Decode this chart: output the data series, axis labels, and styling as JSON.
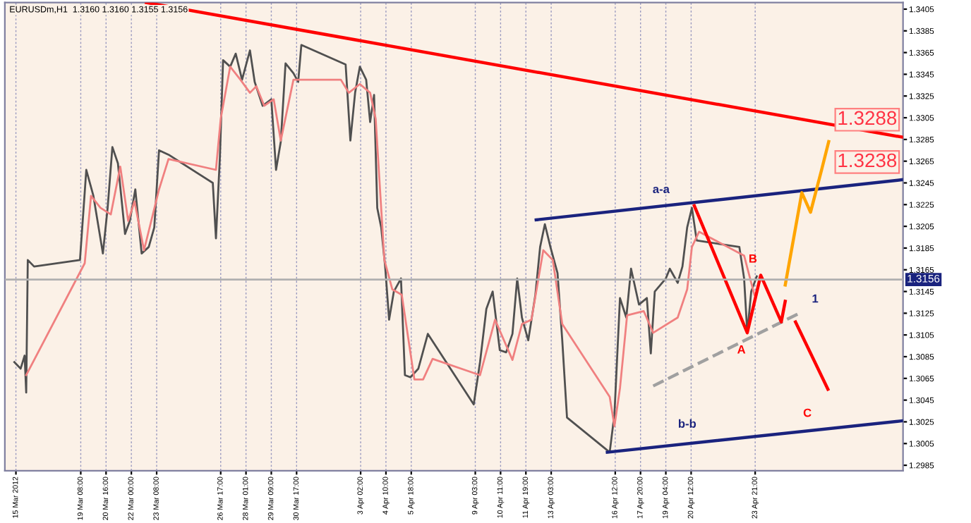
{
  "chart_data": {
    "type": "line",
    "title": "EURUSDm,H1  1.3160 1.3160 1.3155 1.3156",
    "xlim": [
      "2012-03-15T08:00",
      "2012-05-01T16:00"
    ],
    "ylim": [
      1.298,
      1.3411
    ],
    "xticks": [
      {
        "value": "2012-03-15T22:00",
        "label": "15 Mar 2012"
      },
      {
        "value": "2012-03-19T08:00",
        "label": "19 Mar 08:00"
      },
      {
        "value": "2012-03-20T16:00",
        "label": "20 Mar 16:00"
      },
      {
        "value": "2012-03-22T00:00",
        "label": "22 Mar 00:00"
      },
      {
        "value": "2012-03-23T08:00",
        "label": "23 Mar 08:00"
      },
      {
        "value": "2012-03-26T17:00",
        "label": "26 Mar 17:00"
      },
      {
        "value": "2012-03-28T01:00",
        "label": "28 Mar 01:00"
      },
      {
        "value": "2012-03-29T09:00",
        "label": "29 Mar 09:00"
      },
      {
        "value": "2012-03-30T17:00",
        "label": "30 Mar 17:00"
      },
      {
        "value": "2012-04-03T02:00",
        "label": "3 Apr 02:00"
      },
      {
        "value": "2012-04-04T10:00",
        "label": "4 Apr 10:00"
      },
      {
        "value": "2012-04-05T18:00",
        "label": "5 Apr 18:00"
      },
      {
        "value": "2012-04-09T03:00",
        "label": "9 Apr 03:00"
      },
      {
        "value": "2012-04-10T11:00",
        "label": "10 Apr 11:00"
      },
      {
        "value": "2012-04-11T19:00",
        "label": "11 Apr 19:00"
      },
      {
        "value": "2012-04-13T03:00",
        "label": "13 Apr 03:00"
      },
      {
        "value": "2012-04-16T12:00",
        "label": "16 Apr 12:00"
      },
      {
        "value": "2012-04-17T20:00",
        "label": "17 Apr 20:00"
      },
      {
        "value": "2012-04-19T04:00",
        "label": "19 Apr 04:00"
      },
      {
        "value": "2012-04-20T12:00",
        "label": "20 Apr 12:00"
      },
      {
        "value": "2012-04-23T21:00",
        "label": "23 Apr 21:00"
      }
    ],
    "yticks": [
      1.2985,
      1.3005,
      1.3025,
      1.3045,
      1.3065,
      1.3085,
      1.3105,
      1.3125,
      1.3145,
      1.3165,
      1.3185,
      1.3205,
      1.3225,
      1.3245,
      1.3265,
      1.3285,
      1.3305,
      1.3325,
      1.3345,
      1.3365,
      1.3385,
      1.3405
    ],
    "grid": "x",
    "marker": "none",
    "ref_lines": [
      {
        "axis": "y",
        "value": 1.3156,
        "label": "1.3156",
        "color": "#b0b0b0"
      }
    ],
    "series": [
      {
        "color": "#505050",
        "line_style": "solid",
        "x": [
          "2012-03-15T20:00",
          "2012-03-16T04:00",
          "2012-03-16T09:00",
          "2012-03-16T11:00",
          "2012-03-16T13:00",
          "2012-03-16T21:00",
          "2012-03-19T07:00",
          "2012-03-19T15:00",
          "2012-03-20T00:00",
          "2012-03-20T12:00",
          "2012-03-20T18:00",
          "2012-03-21T00:00",
          "2012-03-21T07:00",
          "2012-03-21T16:00",
          "2012-03-21T22:00",
          "2012-03-22T05:00",
          "2012-03-22T13:00",
          "2012-03-22T22:00",
          "2012-03-23T05:00",
          "2012-03-23T11:00",
          "2012-03-23T23:00",
          "2012-03-26T07:00",
          "2012-03-26T11:00",
          "2012-03-26T16:00",
          "2012-03-26T20:00",
          "2012-03-27T05:00",
          "2012-03-27T12:00",
          "2012-03-27T20:00",
          "2012-03-28T06:00",
          "2012-03-28T12:00",
          "2012-03-28T22:00",
          "2012-03-29T09:00",
          "2012-03-29T15:00",
          "2012-03-29T21:00",
          "2012-03-30T03:00",
          "2012-03-30T13:00",
          "2012-03-30T19:00",
          "2012-03-30T23:00",
          "2012-04-02T07:00",
          "2012-04-02T13:00",
          "2012-04-02T19:00",
          "2012-04-03T01:00",
          "2012-04-03T09:00",
          "2012-04-03T14:00",
          "2012-04-03T19:00",
          "2012-04-03T23:00",
          "2012-04-04T04:00",
          "2012-04-04T09:00",
          "2012-04-04T14:00",
          "2012-04-04T20:00",
          "2012-04-05T05:00",
          "2012-04-05T10:00",
          "2012-04-05T17:00",
          "2012-04-06T03:00",
          "2012-04-06T15:00",
          "2012-04-09T01:00",
          "2012-04-09T09:00",
          "2012-04-09T17:00",
          "2012-04-10T01:00",
          "2012-04-10T10:00",
          "2012-04-10T18:00",
          "2012-04-11T02:00",
          "2012-04-11T08:00",
          "2012-04-11T14:00",
          "2012-04-11T22:00",
          "2012-04-12T07:00",
          "2012-04-12T13:00",
          "2012-04-12T19:00",
          "2012-04-13T02:00",
          "2012-04-13T11:00",
          "2012-04-13T17:00",
          "2012-04-13T23:00",
          "2012-04-16T05:00",
          "2012-04-16T11:00",
          "2012-04-16T18:00",
          "2012-04-17T02:00",
          "2012-04-17T08:00",
          "2012-04-17T18:00",
          "2012-04-18T04:00",
          "2012-04-18T09:00",
          "2012-04-18T14:00",
          "2012-04-18T21:00",
          "2012-04-19T04:00",
          "2012-04-19T09:00",
          "2012-04-19T19:00",
          "2012-04-20T01:00",
          "2012-04-20T07:00",
          "2012-04-20T13:00",
          "2012-04-20T19:00",
          "2012-04-23T01:00",
          "2012-04-23T07:00",
          "2012-04-23T11:00",
          "2012-04-23T16:00",
          "2012-04-23T23:00"
        ],
        "values": [
          1.308,
          1.3074,
          1.3086,
          1.3052,
          1.3174,
          1.3168,
          1.3174,
          1.3257,
          1.3233,
          1.318,
          1.3222,
          1.3278,
          1.3263,
          1.3198,
          1.321,
          1.3239,
          1.318,
          1.3186,
          1.3204,
          1.3275,
          1.3271,
          1.3245,
          1.3194,
          1.3269,
          1.3358,
          1.3352,
          1.3364,
          1.334,
          1.3367,
          1.3338,
          1.3316,
          1.3322,
          1.3257,
          1.3283,
          1.3355,
          1.3346,
          1.3338,
          1.3372,
          1.3354,
          1.3284,
          1.3328,
          1.3352,
          1.334,
          1.3301,
          1.3326,
          1.3222,
          1.3204,
          1.3168,
          1.3119,
          1.3145,
          1.3157,
          1.3068,
          1.3066,
          1.3074,
          1.3106,
          1.3041,
          1.308,
          1.3129,
          1.3145,
          1.3091,
          1.3089,
          1.3106,
          1.3157,
          1.3121,
          1.31,
          1.3142,
          1.3186,
          1.3207,
          1.3186,
          1.3162,
          1.31,
          1.3029,
          1.2997,
          1.3032,
          1.3139,
          1.3121,
          1.3166,
          1.3133,
          1.3139,
          1.3088,
          1.3145,
          1.3151,
          1.3157,
          1.3166,
          1.3153,
          1.3168,
          1.3204,
          1.3222,
          1.3192,
          1.3186,
          1.3157,
          1.3107,
          1.3145,
          1.3159
        ]
      },
      {
        "color": "#f08080",
        "line_style": "solid",
        "x": [
          "2012-03-16T11:00",
          "2012-03-19T13:00",
          "2012-03-19T21:00",
          "2012-03-20T09:00",
          "2012-03-20T22:00",
          "2012-03-21T10:00",
          "2012-03-21T20:00",
          "2012-03-22T04:00",
          "2012-03-22T16:00",
          "2012-03-23T11:00",
          "2012-03-23T23:00",
          "2012-03-26T11:00",
          "2012-03-26T17:00",
          "2012-03-27T05:00",
          "2012-03-27T18:00",
          "2012-03-28T06:00",
          "2012-03-28T14:00",
          "2012-03-29T00:00",
          "2012-03-29T12:00",
          "2012-03-29T21:00",
          "2012-03-30T13:00",
          "2012-04-02T01:00",
          "2012-04-02T11:00",
          "2012-04-03T01:00",
          "2012-04-03T14:00",
          "2012-04-03T21:00",
          "2012-04-04T08:00",
          "2012-04-04T18:00",
          "2012-04-05T06:00",
          "2012-04-05T22:00",
          "2012-04-06T09:00",
          "2012-04-06T21:00",
          "2012-04-09T09:00",
          "2012-04-10T04:00",
          "2012-04-11T02:00",
          "2012-04-11T14:00",
          "2012-04-12T02:00",
          "2012-04-12T17:00",
          "2012-04-13T05:00",
          "2012-04-13T17:00",
          "2012-04-16T05:00",
          "2012-04-16T11:00",
          "2012-04-16T18:00",
          "2012-04-17T03:00",
          "2012-04-18T00:00",
          "2012-04-18T12:00",
          "2012-04-19T19:00",
          "2012-04-20T07:00",
          "2012-04-20T13:00",
          "2012-04-20T22:00",
          "2012-04-23T07:00",
          "2012-04-23T20:00"
        ],
        "values": [
          1.3068,
          1.3171,
          1.3233,
          1.3222,
          1.3216,
          1.326,
          1.321,
          1.3228,
          1.3183,
          1.3239,
          1.3267,
          1.3257,
          1.3304,
          1.3352,
          1.334,
          1.3328,
          1.3334,
          1.3316,
          1.3322,
          1.3284,
          1.334,
          1.334,
          1.3328,
          1.3336,
          1.3328,
          1.3304,
          1.3174,
          1.3147,
          1.3142,
          1.3064,
          1.3064,
          1.3083,
          1.3068,
          1.3119,
          1.3082,
          1.3115,
          1.3119,
          1.3183,
          1.3174,
          1.3115,
          1.3048,
          1.3021,
          1.3056,
          1.3123,
          1.3127,
          1.3107,
          1.3121,
          1.3147,
          1.3186,
          1.32,
          1.3178,
          1.3142
        ]
      },
      {
        "color": "#ff0000",
        "line_style": "solid",
        "x": [
          "2012-03-22T19:00",
          "2012-05-01T16:00"
        ],
        "values": [
          1.3411,
          1.3287
        ]
      },
      {
        "color": "#1a237e",
        "line_style": "solid",
        "x": [
          "2012-04-12T08:00",
          "2012-05-01T16:00"
        ],
        "values": [
          1.3211,
          1.3248
        ]
      },
      {
        "color": "#1a237e",
        "line_style": "solid",
        "x": [
          "2012-04-16T02:00",
          "2012-05-01T16:00"
        ],
        "values": [
          1.2997,
          1.3026
        ]
      },
      {
        "color": "#a0a0a0",
        "line_style": "dashed",
        "x": [
          "2012-04-18T12:00",
          "2012-04-26T05:00"
        ],
        "values": [
          1.3058,
          1.3125
        ]
      },
      {
        "color": "#ff0000",
        "line_style": "solid",
        "x": [
          "2012-04-20T16:00",
          "2012-04-23T11:00",
          "2012-04-24T04:00",
          "2012-04-25T06:00",
          "2012-04-25T11:00"
        ],
        "values": [
          1.3224,
          1.3107,
          1.316,
          1.3117,
          1.3136
        ]
      },
      {
        "color": "#ff0000",
        "line_style": "solid",
        "x": [
          "2012-04-26T00:00",
          "2012-04-27T17:00"
        ],
        "values": [
          1.3117,
          1.3055
        ]
      },
      {
        "color": "#ffa500",
        "line_style": "solid",
        "x": [
          "2012-04-25T11:00",
          "2012-04-26T08:00",
          "2012-04-26T19:00",
          "2012-04-27T09:00",
          "2012-04-27T18:00"
        ],
        "values": [
          1.3151,
          1.3236,
          1.3218,
          1.3257,
          1.3283
        ]
      }
    ],
    "annotations": [
      {
        "text": "a-a",
        "x": "2012-04-18T22:00",
        "y": 1.3224
      },
      {
        "text": "b-b",
        "x": "2012-04-20T07:00",
        "y": 1.3008
      },
      {
        "text": "A",
        "x": "2012-04-23T11:00",
        "y": 1.3107
      },
      {
        "text": "B",
        "x": "2012-04-24T04:00",
        "y": 1.316
      },
      {
        "text": "1",
        "x": "2012-04-26T05:00",
        "y": 1.3125
      },
      {
        "text": "C",
        "x": "2012-04-26T15:00",
        "y": 1.3018
      },
      {
        "text": "1.3288",
        "x": "2012-05-01T16:00",
        "y": 1.3287
      },
      {
        "text": "1.3238",
        "x": "2012-05-01T16:00",
        "y": 1.3248
      }
    ]
  }
}
